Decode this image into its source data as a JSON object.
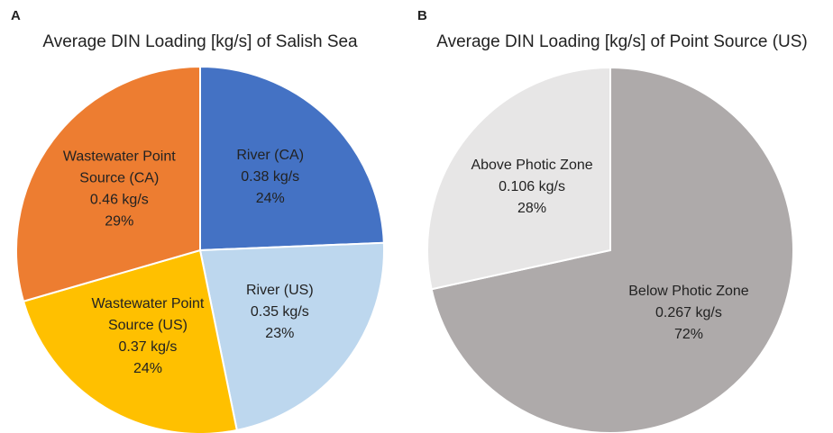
{
  "chart_data": [
    {
      "type": "pie",
      "panel": "A",
      "title": "Average DIN Loading [kg/s] of Salish Sea",
      "categories": [
        "River (CA)",
        "River (US)",
        "Wastewater Point Source (US)",
        "Wastewater Point Source (CA)"
      ],
      "values": [
        0.38,
        0.35,
        0.37,
        0.46
      ],
      "value_labels": [
        "0.38 kg/s",
        "0.35 kg/s",
        "0.37 kg/s",
        "0.46 kg/s"
      ],
      "percent_labels": [
        "24%",
        "23%",
        "24%",
        "29%"
      ],
      "colors": [
        "#4472c4",
        "#bdd7ee",
        "#ffc000",
        "#ed7d31"
      ]
    },
    {
      "type": "pie",
      "panel": "B",
      "title": "Average DIN Loading [kg/s] of Point Source (US)",
      "categories": [
        "Below Photic Zone",
        "Above Photic Zone"
      ],
      "values": [
        0.267,
        0.106
      ],
      "value_labels": [
        "0.267 kg/s",
        "0.106 kg/s"
      ],
      "percent_labels": [
        "72%",
        "28%"
      ],
      "colors": [
        "#aeaaaa",
        "#e7e6e6"
      ]
    }
  ]
}
